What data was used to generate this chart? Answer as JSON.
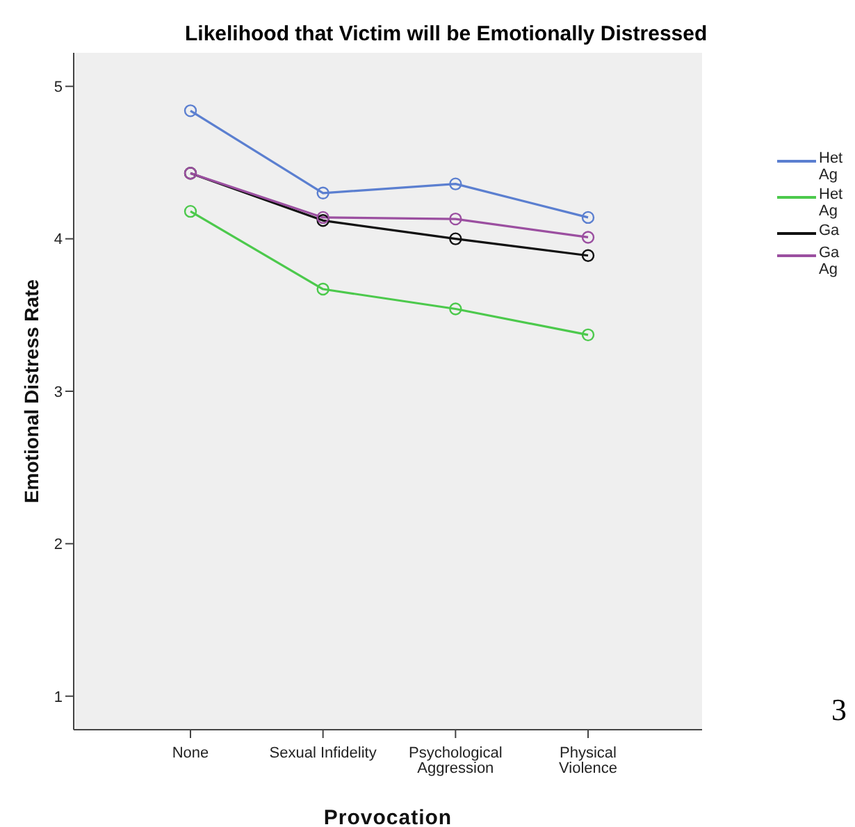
{
  "chart_data": {
    "type": "line",
    "title": "Likelihood that Victim will be Emotionally Distressed",
    "xlabel": "Provocation",
    "ylabel": "Emotional Distress Rate",
    "categories": [
      "None",
      "Sexual Infidelity",
      "Psychological Aggression",
      "Physical Violence"
    ],
    "series": [
      {
        "name": "Het Ag",
        "color": "#5b7fd0",
        "values": [
          4.84,
          4.3,
          4.36,
          4.14
        ]
      },
      {
        "name": "Het Ag",
        "color": "#4cc94c",
        "values": [
          4.18,
          3.67,
          3.54,
          3.37
        ]
      },
      {
        "name": "Ga",
        "color": "#111111",
        "values": [
          4.43,
          4.12,
          4.0,
          3.89
        ]
      },
      {
        "name": "Ga Ag",
        "color": "#9b4fa0",
        "values": [
          4.43,
          4.14,
          4.13,
          4.01
        ]
      }
    ],
    "ylim": [
      0.78,
      5.22
    ],
    "yticks": [
      1,
      2,
      3,
      4,
      5
    ],
    "grid": false,
    "legend": "right",
    "marker": "circle",
    "line_style": "solid",
    "annotations": [
      "3"
    ]
  }
}
